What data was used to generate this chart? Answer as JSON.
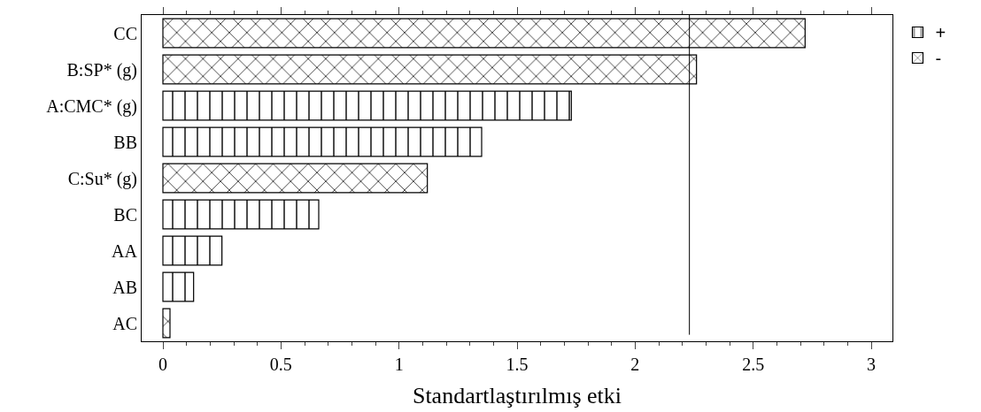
{
  "chart_data": {
    "type": "bar",
    "orientation": "horizontal",
    "xlabel": "Standartlaştırılmış etki",
    "categories": [
      "CC",
      "B:SP* (g)",
      "A:CMC* (g)",
      "BB",
      "C:Su* (g)",
      "BC",
      "AA",
      "AB",
      "AC"
    ],
    "series": [
      {
        "name": "+",
        "color": "#000000",
        "values": [
          null,
          null,
          1.73,
          1.35,
          null,
          0.66,
          0.25,
          0.13,
          null
        ]
      },
      {
        "name": "-",
        "color": "#000000",
        "values": [
          2.72,
          2.26,
          null,
          null,
          1.12,
          null,
          null,
          null,
          0.03
        ]
      }
    ],
    "xlim": [
      -0.09,
      3.09
    ],
    "xticks": [
      0,
      0.5,
      1,
      1.5,
      2,
      2.5,
      3
    ],
    "ref_lines": [
      {
        "axis": "x",
        "value": 2.23,
        "color": "#000000"
      }
    ],
    "legend": "top right"
  }
}
